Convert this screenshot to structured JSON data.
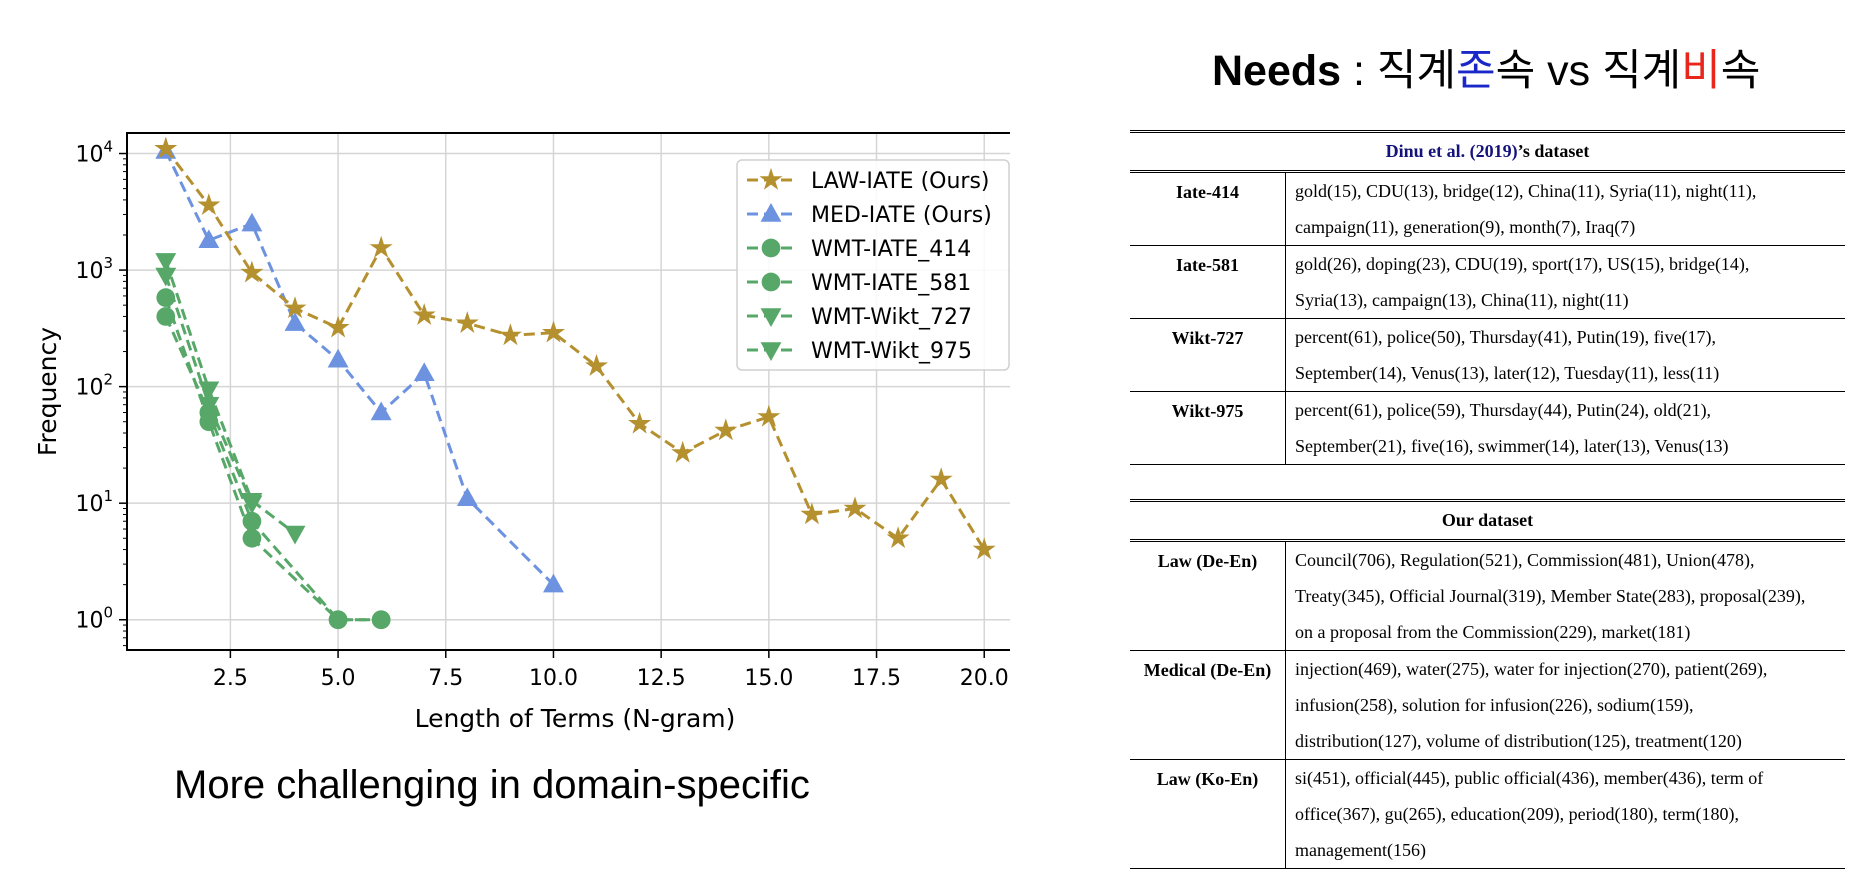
{
  "caption": "More challenging in domain-specific",
  "needs": {
    "bold": "Needs",
    "sep": " : ",
    "p1": "직계",
    "p2": "존",
    "p3": "속 vs 직계",
    "p4": "비",
    "p5": "속"
  },
  "table1": {
    "header_ref": "Dinu et al. (2019)",
    "header_rest": "’s dataset",
    "rows": [
      {
        "label": "Iate-414",
        "lines": [
          "gold(15), CDU(13), bridge(12), China(11), Syria(11), night(11),",
          "campaign(11), generation(9), month(7), Iraq(7)"
        ]
      },
      {
        "label": "Iate-581",
        "lines": [
          "gold(26), doping(23), CDU(19), sport(17), US(15), bridge(14),",
          "Syria(13), campaign(13), China(11), night(11)"
        ]
      },
      {
        "label": "Wikt-727",
        "lines": [
          "percent(61), police(50), Thursday(41), Putin(19), five(17),",
          "September(14), Venus(13), later(12), Tuesday(11), less(11)"
        ]
      },
      {
        "label": "Wikt-975",
        "lines": [
          "percent(61), police(59), Thursday(44), Putin(24), old(21),",
          "September(21), five(16), swimmer(14), later(13), Venus(13)"
        ]
      }
    ]
  },
  "table2": {
    "header": "Our dataset",
    "rows": [
      {
        "label": "Law (De-En)",
        "lines": [
          "Council(706), Regulation(521), Commission(481), Union(478),",
          "Treaty(345), Official Journal(319), Member State(283), proposal(239),",
          "on a proposal from the Commission(229), market(181)"
        ]
      },
      {
        "label": "Medical (De-En)",
        "lines": [
          "injection(469), water(275), water for injection(270), patient(269),",
          "infusion(258), solution for infusion(226), sodium(159),",
          "distribution(127), volume of distribution(125), treatment(120)"
        ]
      },
      {
        "label": "Law (Ko-En)",
        "lines": [
          "si(451), official(445), public official(436), member(436), term of",
          "office(367), gu(265), education(209), period(180), term(180),",
          "management(156)"
        ]
      }
    ]
  },
  "chart_data": {
    "type": "line",
    "xlabel": "Length of Terms (N-gram)",
    "ylabel": "Frequency",
    "xlim": [
      0.1,
      20.9
    ],
    "ylim": [
      0.55,
      15000
    ],
    "yscale": "log",
    "xticks": [
      "2.5",
      "5.0",
      "7.5",
      "10.0",
      "12.5",
      "15.0",
      "17.5",
      "20.0"
    ],
    "xtick_values": [
      2.5,
      5.0,
      7.5,
      10.0,
      12.5,
      15.0,
      17.5,
      20.0
    ],
    "yticks": [
      {
        "base": "10",
        "exp": "0"
      },
      {
        "base": "10",
        "exp": "1"
      },
      {
        "base": "10",
        "exp": "2"
      },
      {
        "base": "10",
        "exp": "3"
      },
      {
        "base": "10",
        "exp": "4"
      }
    ],
    "ytick_values": [
      1,
      10,
      100,
      1000,
      10000
    ],
    "grid": true,
    "legend_position": "top-right",
    "series": [
      {
        "name": "LAW-IATE (Ours)",
        "color": "#b5902f",
        "marker": "star",
        "x": [
          1,
          2,
          3,
          4,
          5,
          6,
          7,
          8,
          9,
          10,
          11,
          12,
          13,
          14,
          15,
          16,
          17,
          18,
          19,
          20
        ],
        "y": [
          11000,
          3600,
          950,
          470,
          320,
          1550,
          410,
          350,
          275,
          290,
          150,
          48,
          27,
          42,
          55,
          8,
          9,
          5,
          16,
          4
        ]
      },
      {
        "name": "MED-IATE (Ours)",
        "color": "#6d93e0",
        "marker": "triangle-up",
        "x": [
          1,
          2,
          3,
          4,
          5,
          6,
          7,
          8,
          10
        ],
        "y": [
          10500,
          1800,
          2500,
          350,
          170,
          60,
          130,
          11,
          2
        ]
      },
      {
        "name": "WMT-IATE_414",
        "color": "#57a868",
        "marker": "circle",
        "x": [
          1,
          2,
          3,
          5,
          6
        ],
        "y": [
          580,
          50,
          5,
          1,
          1
        ]
      },
      {
        "name": "WMT-IATE_581",
        "color": "#57a868",
        "marker": "circle",
        "x": [
          1,
          2,
          3,
          5,
          6
        ],
        "y": [
          400,
          60,
          7,
          1,
          1
        ]
      },
      {
        "name": "WMT-Wikt_727",
        "color": "#57a868",
        "marker": "triangle-down",
        "x": [
          1,
          2,
          3,
          4
        ],
        "y": [
          1200,
          95,
          10.5,
          5.5
        ]
      },
      {
        "name": "WMT-Wikt_975",
        "color": "#57a868",
        "marker": "triangle-down",
        "x": [
          1,
          2,
          3
        ],
        "y": [
          900,
          70,
          10
        ]
      }
    ]
  }
}
